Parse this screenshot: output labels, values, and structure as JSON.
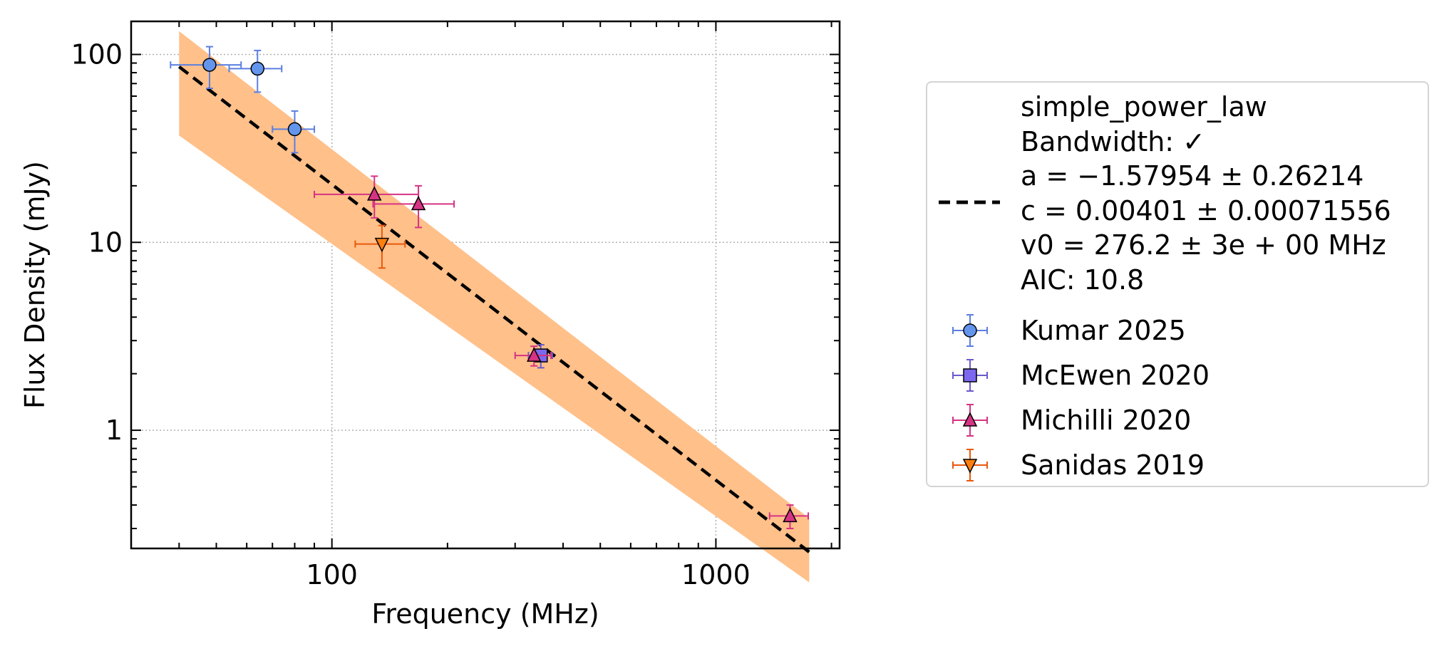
{
  "chart_data": {
    "type": "scatter",
    "xlabel": "Frequency (MHz)",
    "ylabel": "Flux Density (mJy)",
    "xscale": "log",
    "yscale": "log",
    "xlim": [
      30,
      2100
    ],
    "ylim": [
      0.235,
      150
    ],
    "xticks": [
      100,
      1000
    ],
    "xtick_labels": [
      "100",
      "1000"
    ],
    "yticks": [
      1,
      10,
      100
    ],
    "ytick_labels": [
      "1",
      "10",
      "100"
    ],
    "grid": true,
    "legend_position": "outside-right",
    "fit": {
      "model_label": "simple_power_law",
      "lines": [
        "simple_power_law",
        "Bandwidth: ✓",
        "a = −1.57954 ± 0.26214",
        "c = 0.00401 ± 0.00071556",
        "v0 = 276.2 ± 3e + 00 MHz",
        "AIC: 10.8"
      ],
      "a": -1.57954,
      "c": 0.00401,
      "v0": 276.2,
      "x_range": [
        40,
        1750
      ],
      "curve_y": [
        86,
        0.225
      ],
      "band_upper": [
        133,
        0.34
      ],
      "band_lower": [
        37,
        0.155
      ],
      "line_color": "#000000",
      "band_color": "#ffc08a"
    },
    "series": [
      {
        "name": "Kumar 2025",
        "marker": "circle",
        "color": "#6495ed",
        "edge": "#5b7fe0",
        "points": [
          {
            "x": 48,
            "y": 88,
            "xerr": [
              10,
              10
            ],
            "yerr": [
              22,
              22
            ]
          },
          {
            "x": 64,
            "y": 84,
            "xerr": [
              10,
              10
            ],
            "yerr": [
              21,
              21
            ]
          },
          {
            "x": 80,
            "y": 40,
            "xerr": [
              10,
              10
            ],
            "yerr": [
              10,
              10
            ]
          }
        ]
      },
      {
        "name": "McEwen 2020",
        "marker": "square",
        "color": "#7b68ee",
        "edge": "#6a5acd",
        "points": [
          {
            "x": 350,
            "y": 2.5,
            "xerr": [
              25,
              25
            ],
            "yerr": [
              0.35,
              0.35
            ]
          }
        ]
      },
      {
        "name": "Michilli 2020",
        "marker": "triangle-up",
        "color": "#d63384",
        "edge": "#d63384",
        "points": [
          {
            "x": 129,
            "y": 18,
            "xerr": [
              39,
              39
            ],
            "yerr": [
              4.5,
              4.5
            ]
          },
          {
            "x": 168,
            "y": 16,
            "xerr": [
              40,
              40
            ],
            "yerr": [
              4,
              4
            ]
          },
          {
            "x": 336,
            "y": 2.5,
            "xerr": [
              36,
              36
            ],
            "yerr": [
              0.3,
              0.3
            ]
          },
          {
            "x": 1560,
            "y": 0.35,
            "xerr": [
              180,
              180
            ],
            "yerr": [
              0.05,
              0.05
            ]
          }
        ]
      },
      {
        "name": "Sanidas 2019",
        "marker": "triangle-down",
        "color": "#ff7f0e",
        "edge": "#e8590c",
        "points": [
          {
            "x": 135,
            "y": 9.8,
            "xerr": [
              20,
              20
            ],
            "yerr": [
              2.5,
              2.5
            ]
          }
        ]
      }
    ]
  }
}
